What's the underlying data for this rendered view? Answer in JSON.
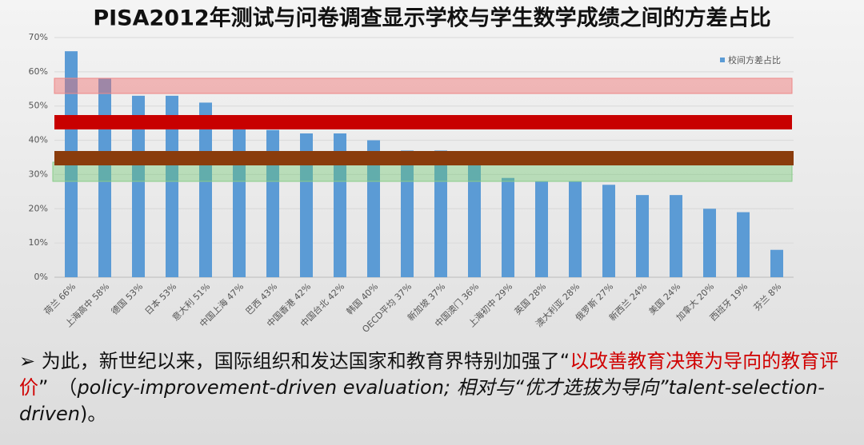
{
  "chart_data": {
    "type": "bar",
    "title": "PISA2012年测试与问卷调查显示学校与学生数学成绩之间的方差占比",
    "categories": [
      "荷兰 66%",
      "上海高中 58%",
      "德国 53%",
      "日本 53%",
      "意大利 51%",
      "中国上海 47%",
      "巴西 43%",
      "中国香港 42%",
      "中国台北 42%",
      "韩国 40%",
      "OECD平均 37%",
      "新加坡 37%",
      "中国澳门 36%",
      "上海初中 29%",
      "英国 28%",
      "澳大利亚 28%",
      "俄罗斯 27%",
      "新西兰 24%",
      "美国 24%",
      "加拿大 20%",
      "西班牙 19%",
      "芬兰 8%"
    ],
    "series": [
      {
        "name": "校间方差占比",
        "color": "#5b9bd5",
        "values": [
          66,
          58,
          53,
          53,
          51,
          47,
          43,
          42,
          42,
          40,
          37,
          37,
          36,
          29,
          28,
          28,
          27,
          24,
          24,
          20,
          19,
          8
        ]
      }
    ],
    "ylim": [
      0,
      70
    ],
    "yticks": [
      {
        "value": 0,
        "label": "0%"
      },
      {
        "value": 10,
        "label": "10%"
      },
      {
        "value": 20,
        "label": "20%"
      },
      {
        "value": 30,
        "label": "30%"
      },
      {
        "value": 40,
        "label": "40%"
      },
      {
        "value": 50,
        "label": "50%"
      },
      {
        "value": 60,
        "label": "60%"
      },
      {
        "value": 70,
        "label": "70%"
      }
    ],
    "grid": true
  },
  "text": {
    "bullet": "➢",
    "part1": "为此，新世纪以来，国际组织和发达国家和教育界特别加强了“",
    "highlight": "以改善教育决策为导向的教育评价",
    "part2": "”　（",
    "english1": "policy-improvement-driven evaluation; 相对与“优才选拔为导向”talent-selection-driven",
    "part3": ")。"
  }
}
